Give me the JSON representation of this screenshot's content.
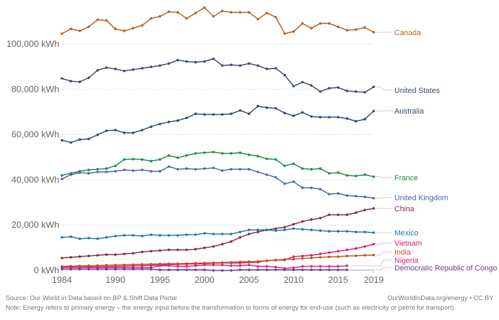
{
  "chart_data": {
    "type": "line",
    "title": "",
    "xlabel": "",
    "ylabel": "",
    "y_unit_suffix": " kWh",
    "ylim": [
      0,
      118000
    ],
    "xlim": [
      1984,
      2019
    ],
    "grid": true,
    "legend": "inline-right",
    "yticks": [
      0,
      20000,
      40000,
      60000,
      80000,
      100000
    ],
    "ytick_labels": [
      "0 kWh",
      "20,000 kWh",
      "40,000 kWh",
      "60,000 kWh",
      "80,000 kWh",
      "100,000 kWh"
    ],
    "xticks": [
      1984,
      1990,
      1995,
      2000,
      2005,
      2010,
      2015,
      2019
    ],
    "xtick_labels": [
      "1984",
      "1990",
      "1995",
      "2000",
      "2005",
      "2010",
      "2015",
      "2019"
    ],
    "series": [
      {
        "name": "Canada",
        "color": "#b85f1a",
        "start": 1984,
        "values": [
          104600,
          106700,
          105800,
          107600,
          110700,
          110400,
          106700,
          105800,
          107000,
          108200,
          111300,
          112200,
          114300,
          114000,
          111300,
          113700,
          116100,
          112200,
          114600,
          114000,
          114000,
          114000,
          111000,
          113700,
          111900,
          104600,
          105500,
          109100,
          107000,
          109100,
          109100,
          107600,
          106100,
          106400,
          107300,
          105200
        ]
      },
      {
        "name": "United States",
        "color": "#3a4a6b",
        "start": 1984,
        "values": [
          84800,
          83600,
          83300,
          85100,
          88400,
          89600,
          89000,
          88100,
          88700,
          89300,
          89900,
          90500,
          91400,
          92900,
          92300,
          92000,
          92300,
          93500,
          90500,
          90800,
          90500,
          91400,
          90500,
          89000,
          89300,
          86300,
          81400,
          83200,
          81700,
          79000,
          80500,
          80800,
          79300,
          79000,
          78700,
          81100
        ]
      },
      {
        "name": "Australia",
        "color": "#2f4a73",
        "start": 1984,
        "values": [
          57500,
          56500,
          57800,
          58100,
          59900,
          61700,
          62000,
          60800,
          60800,
          62000,
          63500,
          64700,
          65600,
          66200,
          67400,
          69200,
          68900,
          68900,
          68900,
          69200,
          70700,
          69200,
          72600,
          71900,
          71600,
          69500,
          68300,
          69800,
          68000,
          67700,
          67700,
          67700,
          67100,
          65900,
          66800,
          70400
        ]
      },
      {
        "name": "France",
        "color": "#1a8a4a",
        "start": 1984,
        "values": [
          42000,
          42900,
          43800,
          44400,
          44700,
          45000,
          46200,
          49000,
          49200,
          49000,
          48300,
          49000,
          50800,
          49800,
          50800,
          51700,
          52000,
          52300,
          51700,
          51700,
          52000,
          51100,
          50500,
          49300,
          49000,
          46200,
          47100,
          45000,
          44700,
          45000,
          42900,
          43200,
          42000,
          41700,
          42300,
          41400
        ]
      },
      {
        "name": "United Kingdom",
        "color": "#4a66a8",
        "start": 1984,
        "values": [
          40400,
          42300,
          43200,
          42900,
          43500,
          43500,
          43800,
          44400,
          44100,
          44400,
          43800,
          43800,
          45900,
          44700,
          45000,
          44700,
          45000,
          45300,
          44100,
          44700,
          44700,
          44700,
          43500,
          42300,
          41100,
          38300,
          39200,
          36500,
          36500,
          35900,
          33700,
          34000,
          33100,
          32800,
          32500,
          31900
        ]
      },
      {
        "name": "China",
        "color": "#8a2a3a",
        "start": 1984,
        "values": [
          5500,
          5800,
          6100,
          6400,
          6700,
          7000,
          7000,
          7300,
          7600,
          8200,
          8500,
          8800,
          9100,
          9100,
          9100,
          9400,
          10000,
          10600,
          11600,
          12800,
          14600,
          16100,
          17000,
          17900,
          18500,
          19100,
          20400,
          21600,
          22500,
          23100,
          24600,
          24600,
          24600,
          25500,
          26700,
          27400
        ]
      },
      {
        "name": "Mexico",
        "color": "#1a78a8",
        "start": 1984,
        "values": [
          14600,
          14900,
          14000,
          14300,
          14000,
          14600,
          15200,
          15500,
          15500,
          15200,
          15800,
          15500,
          15500,
          15500,
          15800,
          15800,
          16400,
          16100,
          16100,
          16100,
          17000,
          17900,
          17900,
          17900,
          17600,
          17900,
          18500,
          18200,
          17900,
          17600,
          17300,
          17300,
          17300,
          17000,
          17000,
          16700
        ]
      },
      {
        "name": "Vietnam",
        "color": "#d81b72",
        "start": 1984,
        "values": [
          1500,
          1500,
          1500,
          1600,
          1600,
          1700,
          1800,
          1900,
          2000,
          2100,
          2300,
          2400,
          2600,
          2700,
          2800,
          2900,
          3000,
          3200,
          3300,
          3300,
          3300,
          3600,
          3600,
          4300,
          4600,
          4600,
          6100,
          6400,
          6700,
          7300,
          7900,
          8500,
          9100,
          9700,
          10600,
          11600
        ]
      },
      {
        "name": "India",
        "color": "#c0501a",
        "start": 1984,
        "values": [
          1800,
          1900,
          2000,
          2100,
          2200,
          2300,
          2400,
          2500,
          2600,
          2700,
          2800,
          2900,
          3000,
          3000,
          3100,
          3200,
          3300,
          3400,
          3500,
          3600,
          3800,
          3900,
          4000,
          4300,
          4600,
          4900,
          5000,
          5300,
          5500,
          5800,
          6000,
          6100,
          6400,
          6500,
          6700,
          6800
        ]
      },
      {
        "name": "Nigeria",
        "color": "#e0207a",
        "start": 1984,
        "end": 2016,
        "values": [
          1300,
          1300,
          1300,
          1300,
          1300,
          1300,
          1300,
          1300,
          1300,
          1300,
          1300,
          2100,
          2100,
          1800,
          1800,
          2100,
          2400,
          2400,
          2400,
          2100,
          2100,
          2400,
          1800,
          1800,
          1500,
          900,
          1200,
          1800,
          1800,
          1800,
          1800,
          1800,
          2100
        ]
      },
      {
        "name": "Democratic Republic of Congo",
        "color": "#6a3a9a",
        "start": 1984,
        "end": 2016,
        "values": [
          600,
          600,
          600,
          600,
          600,
          600,
          600,
          600,
          600,
          600,
          600,
          300,
          300,
          300,
          300,
          300,
          300,
          0,
          0,
          0,
          300,
          300,
          300,
          300,
          300,
          300,
          300,
          300,
          300,
          300,
          300,
          300,
          300
        ]
      }
    ]
  },
  "footer": {
    "source": "Source: Our World in Data based on BP & Shift Data Portal",
    "note": "Note: Energy refers to primary energy – the energy input before the transformation to forms of energy for end-use (such as electricity or petrol for transport).",
    "credit": "OurWorldInData.org/energy • CC BY"
  }
}
